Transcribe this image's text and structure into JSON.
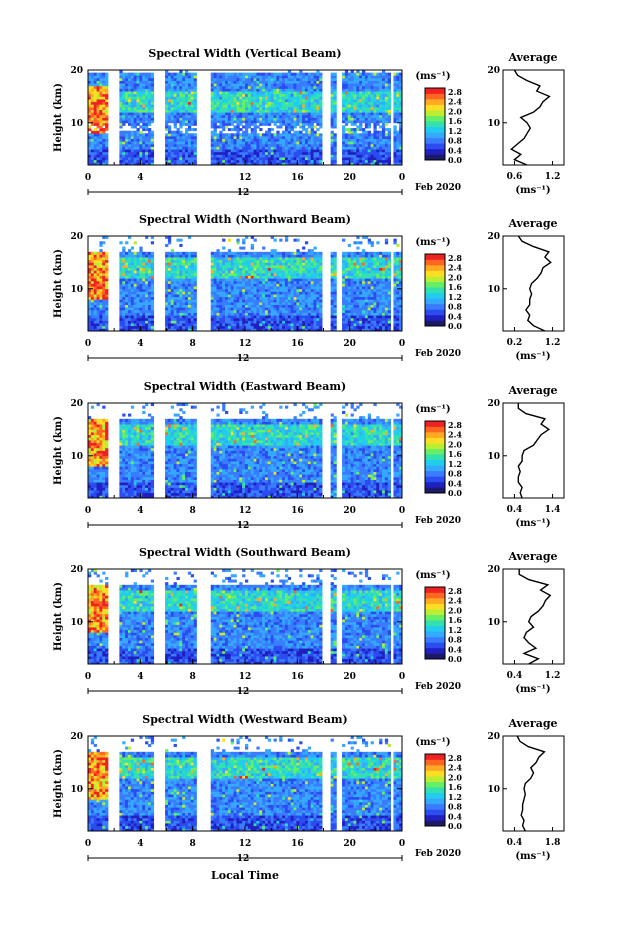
{
  "colorbar": {
    "unit_label": "(ms⁻¹)",
    "tick_labels": [
      "2.8",
      "2.4",
      "2.0",
      "1.6",
      "1.2",
      "0.8",
      "0.4",
      "0.0"
    ],
    "colors": [
      "#1a1a66",
      "#2020c0",
      "#2a4cf0",
      "#3a7cff",
      "#35a8ff",
      "#22ccee",
      "#33e0b0",
      "#66ee66",
      "#bbee33",
      "#ffdd22",
      "#ffaa22",
      "#ff6622",
      "#ee2222"
    ]
  },
  "date_label": "Feb 2020",
  "xaxis_label": "Local Time",
  "average_title": "Average",
  "average_xlabel": "(ms⁻¹)",
  "chart_data": [
    {
      "type": "heatmap",
      "title": "Spectral Width (Vertical Beam)",
      "ylabel": "Height (km)",
      "xlabel": "Local Time",
      "x_ticks": [
        "0",
        "4",
        "12",
        "16",
        "20",
        "0"
      ],
      "x_sub_label": "12",
      "y_ticks": [
        "20",
        "10"
      ],
      "ylim": [
        2,
        20
      ],
      "color_range": [
        0,
        2.8
      ],
      "average": {
        "x_ticks": [
          "0.6",
          "1.2"
        ],
        "y_ticks": [
          "20",
          "10"
        ],
        "heights": [
          2,
          3,
          4,
          5,
          6,
          7,
          8,
          9,
          10,
          11,
          12,
          13,
          14,
          15,
          16,
          17,
          18,
          19,
          20
        ],
        "values": [
          0.8,
          0.6,
          0.7,
          0.55,
          0.65,
          0.75,
          0.8,
          0.85,
          0.8,
          0.7,
          0.9,
          1.0,
          1.05,
          1.15,
          0.95,
          1.0,
          0.8,
          0.65,
          0.6
        ]
      }
    },
    {
      "type": "heatmap",
      "title": "Spectral Width (Northward Beam)",
      "ylabel": "Height (km)",
      "xlabel": "Local Time",
      "x_ticks": [
        "0",
        "4",
        "8",
        "12",
        "16",
        "20",
        "0"
      ],
      "x_sub_label": "12",
      "y_ticks": [
        "20",
        "10"
      ],
      "ylim": [
        2,
        20
      ],
      "color_range": [
        0,
        2.8
      ],
      "average": {
        "x_ticks": [
          "0.2",
          "1.2"
        ],
        "y_ticks": [
          "20",
          "10"
        ],
        "heights": [
          2,
          3,
          4,
          5,
          6,
          7,
          8,
          9,
          10,
          11,
          12,
          13,
          14,
          15,
          16,
          17,
          18,
          19,
          20
        ],
        "values": [
          1.0,
          0.7,
          0.55,
          0.6,
          0.5,
          0.6,
          0.6,
          0.65,
          0.6,
          0.65,
          0.8,
          0.9,
          0.95,
          1.15,
          1.0,
          1.1,
          0.7,
          0.4,
          0.3
        ]
      }
    },
    {
      "type": "heatmap",
      "title": "Spectral Width (Eastward Beam)",
      "ylabel": "Height (km)",
      "xlabel": "Local Time",
      "x_ticks": [
        "0",
        "4",
        "8",
        "12",
        "16",
        "20",
        "0"
      ],
      "x_sub_label": "12",
      "y_ticks": [
        "20",
        "10"
      ],
      "ylim": [
        2,
        20
      ],
      "color_range": [
        0,
        2.8
      ],
      "average": {
        "x_ticks": [
          "0.4",
          "1.4"
        ],
        "y_ticks": [
          "20",
          "10"
        ],
        "heights": [
          2,
          3,
          4,
          5,
          6,
          7,
          8,
          9,
          10,
          11,
          12,
          13,
          14,
          15,
          16,
          17,
          18,
          19,
          20
        ],
        "values": [
          0.6,
          0.55,
          0.6,
          0.5,
          0.5,
          0.55,
          0.5,
          0.6,
          0.6,
          0.65,
          0.9,
          1.0,
          1.1,
          1.3,
          1.1,
          1.2,
          0.7,
          0.5,
          0.5
        ]
      }
    },
    {
      "type": "heatmap",
      "title": "Spectral Width (Southward Beam)",
      "ylabel": "Height (km)",
      "xlabel": "Local Time",
      "x_ticks": [
        "0",
        "4",
        "8",
        "12",
        "16",
        "20",
        "0"
      ],
      "x_sub_label": "12",
      "y_ticks": [
        "20",
        "10"
      ],
      "ylim": [
        2,
        20
      ],
      "color_range": [
        0,
        2.8
      ],
      "average": {
        "x_ticks": [
          "0.4",
          "1.2"
        ],
        "y_ticks": [
          "20",
          "10"
        ],
        "heights": [
          2,
          3,
          4,
          5,
          6,
          7,
          8,
          9,
          10,
          11,
          12,
          13,
          14,
          15,
          16,
          17,
          18,
          19,
          20
        ],
        "values": [
          0.7,
          0.9,
          0.6,
          0.85,
          0.7,
          0.6,
          0.65,
          0.8,
          0.7,
          0.75,
          0.9,
          1.0,
          1.05,
          1.15,
          0.95,
          1.1,
          0.7,
          0.5,
          0.5
        ]
      }
    },
    {
      "type": "heatmap",
      "title": "Spectral Width (Westward Beam)",
      "ylabel": "Height (km)",
      "xlabel": "Local Time",
      "x_ticks": [
        "0",
        "4",
        "8",
        "12",
        "16",
        "20",
        "0"
      ],
      "x_sub_label": "12",
      "y_ticks": [
        "20",
        "10"
      ],
      "ylim": [
        2,
        20
      ],
      "color_range": [
        0,
        2.8
      ],
      "average": {
        "x_ticks": [
          "0.4",
          "1.8"
        ],
        "y_ticks": [
          "20",
          "10"
        ],
        "heights": [
          2,
          3,
          4,
          5,
          6,
          7,
          8,
          9,
          10,
          11,
          12,
          13,
          14,
          15,
          16,
          17,
          18,
          19,
          20
        ],
        "values": [
          0.8,
          0.7,
          0.75,
          0.65,
          0.7,
          0.7,
          0.75,
          0.8,
          0.75,
          0.8,
          1.0,
          1.1,
          1.0,
          1.2,
          1.3,
          1.5,
          0.9,
          0.6,
          0.5
        ]
      }
    }
  ]
}
